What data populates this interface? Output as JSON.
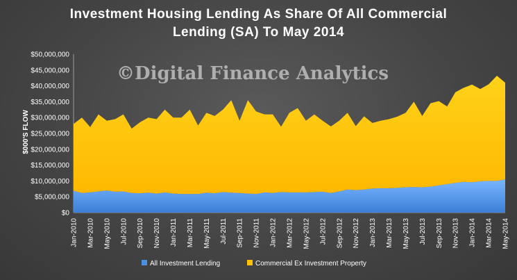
{
  "chart_data": {
    "type": "area",
    "title_line1": "Investment Housing  Lending As Share Of All Commercial",
    "title_line2": "Lending  (SA) To May 2014",
    "ylabel": "$000'S FLOW",
    "watermark": "©Digital Finance Analytics",
    "ylim": [
      0,
      50000000
    ],
    "y_ticks": [
      "$0",
      "$5,000,000",
      "$10,000,000",
      "$15,000,000",
      "$20,000,000",
      "$25,000,000",
      "$30,000,000",
      "$35,000,000",
      "$40,000,000",
      "$45,000,000",
      "$50,000,000"
    ],
    "x_tick_labels": [
      "Jan-2010",
      "Mar-2010",
      "May-2010",
      "Jul-2010",
      "Sep-2010",
      "Nov-2010",
      "Jan-2011",
      "Mar-2011",
      "May-2011",
      "Jul-2011",
      "Sep-2011",
      "Nov-2011",
      "Jan-2012",
      "Mar-2012",
      "May-2012",
      "Jul-2012",
      "Sep-2012",
      "Nov-2012",
      "Jan-2013",
      "Mar-2013",
      "May-2013",
      "Jul-2013",
      "Sep-2013",
      "Nov-2013",
      "Jan-2014",
      "Mar-2014",
      "May-2014"
    ],
    "x": [
      "Jan-2010",
      "Feb-2010",
      "Mar-2010",
      "Apr-2010",
      "May-2010",
      "Jun-2010",
      "Jul-2010",
      "Aug-2010",
      "Sep-2010",
      "Oct-2010",
      "Nov-2010",
      "Dec-2010",
      "Jan-2011",
      "Feb-2011",
      "Mar-2011",
      "Apr-2011",
      "May-2011",
      "Jun-2011",
      "Jul-2011",
      "Aug-2011",
      "Sep-2011",
      "Oct-2011",
      "Nov-2011",
      "Dec-2011",
      "Jan-2012",
      "Feb-2012",
      "Mar-2012",
      "Apr-2012",
      "May-2012",
      "Jun-2012",
      "Jul-2012",
      "Aug-2012",
      "Sep-2012",
      "Oct-2012",
      "Nov-2012",
      "Dec-2012",
      "Jan-2013",
      "Feb-2013",
      "Mar-2013",
      "Apr-2013",
      "May-2013",
      "Jun-2013",
      "Jul-2013",
      "Aug-2013",
      "Sep-2013",
      "Oct-2013",
      "Nov-2013",
      "Dec-2013",
      "Jan-2014",
      "Feb-2014",
      "Mar-2014",
      "Apr-2014",
      "May-2014"
    ],
    "stacked": true,
    "series": [
      {
        "name": "All Investment Lending",
        "color": "#4a90e2",
        "values": [
          6900000,
          6200000,
          6400000,
          6700000,
          7000000,
          6600000,
          6700000,
          6200000,
          6100000,
          6300000,
          6000000,
          6400000,
          6000000,
          5900000,
          5900000,
          5900000,
          6300000,
          6100000,
          6500000,
          6300000,
          6200000,
          6000000,
          5900000,
          6400000,
          6200000,
          6500000,
          6400000,
          6400000,
          6400000,
          6500000,
          6600000,
          6200000,
          6700000,
          7300000,
          7100000,
          7300000,
          7600000,
          7700000,
          7700000,
          7800000,
          8000000,
          8100000,
          8000000,
          8200000,
          8600000,
          9000000,
          9400000,
          9700000,
          9600000,
          9900000,
          10000000,
          10000000,
          10500000
        ]
      },
      {
        "name": "Commercial Ex Investment Property",
        "color": "#ffc000",
        "values": [
          21100000,
          23800000,
          20600000,
          24300000,
          22000000,
          22900000,
          24300000,
          20300000,
          22400000,
          23700000,
          23500000,
          26100000,
          24000000,
          24100000,
          26600000,
          21600000,
          25200000,
          24400000,
          26000000,
          29200000,
          22800000,
          29500000,
          26000000,
          24600000,
          24800000,
          20600000,
          25100000,
          26600000,
          22600000,
          24500000,
          22400000,
          21000000,
          22300000,
          24200000,
          20200000,
          23100000,
          20700000,
          21300000,
          21800000,
          22500000,
          23500000,
          26900000,
          22500000,
          26300000,
          26600000,
          24500000,
          28600000,
          29700000,
          30800000,
          29100000,
          30500000,
          33200000,
          30500000
        ]
      }
    ],
    "grid": false,
    "legend_position": "bottom"
  }
}
